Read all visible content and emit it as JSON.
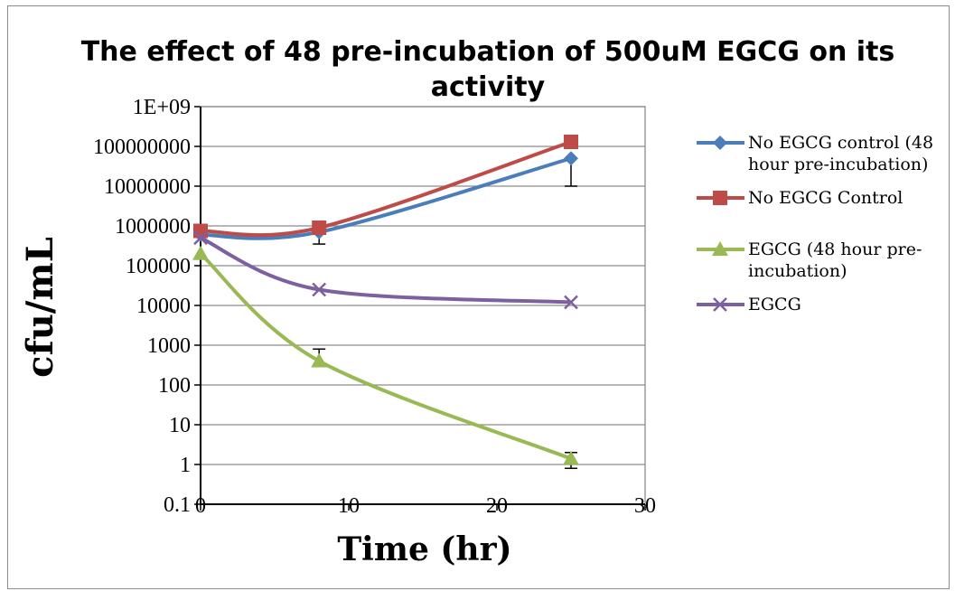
{
  "chart_data": {
    "type": "line",
    "title": "The effect of 48 pre-incubation of 500uM EGCG on its activity",
    "xlabel": "Time (hr)",
    "ylabel": "cfu/mL",
    "x_scale": "linear",
    "y_scale": "log",
    "xlim": [
      0,
      30
    ],
    "ylim": [
      0.1,
      1000000000
    ],
    "x_ticks": [
      "0",
      "10",
      "20",
      "30"
    ],
    "y_ticks": [
      "1E+09",
      "100000000",
      "10000000",
      "1000000",
      "100000",
      "10000",
      "1000",
      "100",
      "10",
      "1",
      "0.1"
    ],
    "grid": "horizontal",
    "legend_position": "right",
    "series": [
      {
        "name": "No EGCG control (48 hour pre-incubation)",
        "color": "#4a7ebb",
        "marker": "diamond",
        "points": [
          [
            0,
            600000
          ],
          [
            8,
            700000
          ],
          [
            25,
            50000000
          ]
        ],
        "error_low": [
          null,
          350000,
          10000000
        ],
        "error_high": [
          null,
          1000000,
          null
        ]
      },
      {
        "name": "No EGCG Control",
        "color": "#be4b48",
        "marker": "square",
        "points": [
          [
            0,
            750000
          ],
          [
            8,
            900000
          ],
          [
            25,
            130000000
          ]
        ],
        "error_low": [
          null,
          null,
          null
        ],
        "error_high": [
          null,
          null,
          null
        ]
      },
      {
        "name": "EGCG (48 hour pre-incubation)",
        "color": "#98b954",
        "marker": "triangle",
        "points": [
          [
            0,
            200000
          ],
          [
            8,
            400
          ],
          [
            25,
            1.4
          ]
        ],
        "error_low": [
          null,
          null,
          0.8
        ],
        "error_high": [
          null,
          800,
          2
        ]
      },
      {
        "name": "EGCG",
        "color": "#7d60a0",
        "marker": "x",
        "points": [
          [
            0,
            500000
          ],
          [
            8,
            25000
          ],
          [
            25,
            12000
          ]
        ],
        "error_low": [
          null,
          null,
          null
        ],
        "error_high": [
          null,
          null,
          null
        ]
      }
    ],
    "legend": [
      {
        "series": 0,
        "lines": [
          "No EGCG control (48",
          "hour pre-incubation)"
        ]
      },
      {
        "series": 1,
        "lines": [
          "No EGCG Control"
        ]
      },
      {
        "series": 2,
        "lines": [
          "EGCG (48 hour pre-",
          "incubation)"
        ]
      },
      {
        "series": 3,
        "lines": [
          "EGCG"
        ]
      }
    ]
  }
}
